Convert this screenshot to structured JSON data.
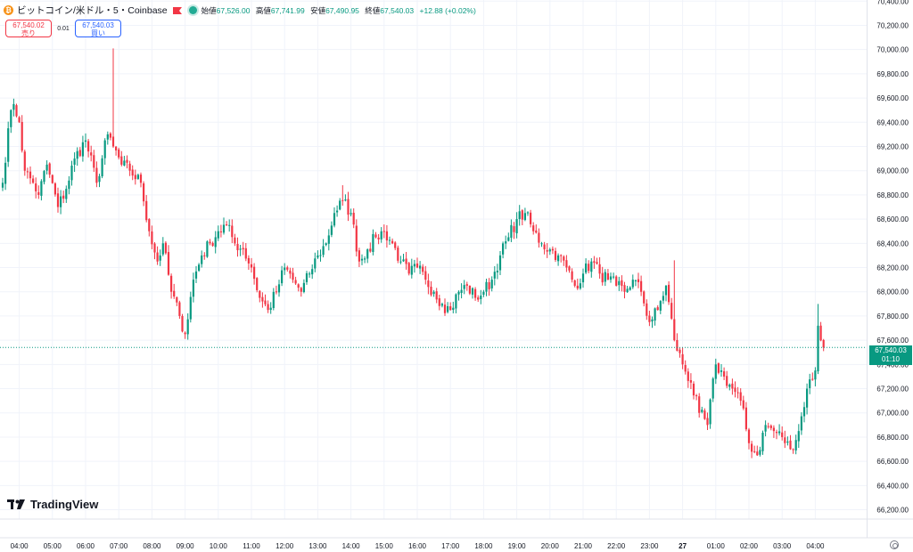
{
  "header": {
    "symbol": "ビットコイン/米ドル・5・Coinbase",
    "coin_glyph": "₿",
    "open_label": "始値",
    "open": "67,526.00",
    "high_label": "高値",
    "high": "67,741.99",
    "low_label": "安値",
    "low": "67,490.95",
    "close_label": "終値",
    "close": "67,540.03",
    "change": "+12.88 (+0.02%)"
  },
  "trade": {
    "sell_price": "67,540.02",
    "sell_label": "売り",
    "spread": "0.01",
    "buy_price": "67,540.03",
    "buy_label": "買い"
  },
  "current_price": {
    "value": "67,540.03",
    "countdown": "01:10"
  },
  "logo": {
    "text": "TradingView"
  },
  "colors": {
    "up": "#089981",
    "down": "#f23645",
    "grid": "#f0f3fa",
    "axis_text": "#131722"
  },
  "chart_data": {
    "type": "candlestick",
    "interval": "5",
    "ylim": [
      66160,
      70380
    ],
    "y_ticks": [
      66200,
      66400,
      66600,
      66800,
      67000,
      67200,
      67400,
      67600,
      67800,
      68000,
      68200,
      68400,
      68600,
      68800,
      69000,
      69200,
      69400,
      69600,
      69800,
      70000,
      70200,
      70400
    ],
    "y_tick_labels": [
      "66,200.00",
      "66,400.00",
      "66,600.00",
      "66,800.00",
      "67,000.00",
      "67,200.00",
      "67,400.00",
      "67,600.00",
      "67,800.00",
      "68,000.00",
      "68,200.00",
      "68,400.00",
      "68,600.00",
      "68,800.00",
      "69,000.00",
      "69,200.00",
      "69,400.00",
      "69,600.00",
      "69,800.00",
      "70,000.00",
      "70,200.00",
      "70,400.00"
    ],
    "x_tick_labels": [
      "04:00",
      "05:00",
      "06:00",
      "07:00",
      "08:00",
      "09:00",
      "10:00",
      "11:00",
      "12:00",
      "13:00",
      "14:00",
      "15:00",
      "16:00",
      "17:00",
      "18:00",
      "19:00",
      "20:00",
      "21:00",
      "22:00",
      "23:00",
      "27",
      "01:00",
      "02:00",
      "03:00",
      "04:00"
    ],
    "x_tick_bar_index": [
      6,
      18,
      30,
      42,
      54,
      66,
      78,
      90,
      102,
      114,
      126,
      138,
      150,
      162,
      174,
      186,
      198,
      210,
      222,
      234,
      246,
      258,
      270,
      282,
      294
    ],
    "bar_count": 298,
    "current_price": 67540.03,
    "close_anchors": [
      [
        0,
        68900
      ],
      [
        2,
        69350
      ],
      [
        4,
        69550
      ],
      [
        6,
        69400
      ],
      [
        8,
        69000
      ],
      [
        11,
        68900
      ],
      [
        13,
        68800
      ],
      [
        16,
        69050
      ],
      [
        20,
        68700
      ],
      [
        23,
        68850
      ],
      [
        26,
        69100
      ],
      [
        30,
        69250
      ],
      [
        34,
        68900
      ],
      [
        38,
        69300
      ],
      [
        40,
        69200
      ],
      [
        43,
        69050
      ],
      [
        46,
        69000
      ],
      [
        50,
        68900
      ],
      [
        53,
        68500
      ],
      [
        56,
        68250
      ],
      [
        58,
        68400
      ],
      [
        61,
        68000
      ],
      [
        64,
        67800
      ],
      [
        66,
        67650
      ],
      [
        69,
        68100
      ],
      [
        72,
        68300
      ],
      [
        75,
        68400
      ],
      [
        78,
        68500
      ],
      [
        81,
        68550
      ],
      [
        84,
        68400
      ],
      [
        87,
        68350
      ],
      [
        90,
        68200
      ],
      [
        93,
        67950
      ],
      [
        96,
        67850
      ],
      [
        99,
        68000
      ],
      [
        102,
        68200
      ],
      [
        105,
        68100
      ],
      [
        108,
        68000
      ],
      [
        111,
        68150
      ],
      [
        114,
        68300
      ],
      [
        117,
        68400
      ],
      [
        120,
        68650
      ],
      [
        123,
        68750
      ],
      [
        126,
        68650
      ],
      [
        129,
        68250
      ],
      [
        132,
        68350
      ],
      [
        135,
        68450
      ],
      [
        138,
        68500
      ],
      [
        141,
        68400
      ],
      [
        144,
        68250
      ],
      [
        147,
        68150
      ],
      [
        150,
        68200
      ],
      [
        153,
        68100
      ],
      [
        156,
        68000
      ],
      [
        159,
        67900
      ],
      [
        162,
        67850
      ],
      [
        165,
        68000
      ],
      [
        168,
        68050
      ],
      [
        171,
        67950
      ],
      [
        174,
        68000
      ],
      [
        177,
        68100
      ],
      [
        180,
        68300
      ],
      [
        183,
        68450
      ],
      [
        186,
        68600
      ],
      [
        189,
        68650
      ],
      [
        192,
        68500
      ],
      [
        195,
        68400
      ],
      [
        198,
        68350
      ],
      [
        201,
        68300
      ],
      [
        204,
        68200
      ],
      [
        207,
        68050
      ],
      [
        210,
        68150
      ],
      [
        213,
        68250
      ],
      [
        216,
        68150
      ],
      [
        219,
        68100
      ],
      [
        222,
        68050
      ],
      [
        225,
        68000
      ],
      [
        228,
        68100
      ],
      [
        231,
        68000
      ],
      [
        234,
        67750
      ],
      [
        237,
        67850
      ],
      [
        240,
        68050
      ],
      [
        243,
        67600
      ],
      [
        246,
        67400
      ],
      [
        249,
        67250
      ],
      [
        252,
        67000
      ],
      [
        255,
        66900
      ],
      [
        258,
        67400
      ],
      [
        261,
        67300
      ],
      [
        264,
        67200
      ],
      [
        267,
        67100
      ],
      [
        270,
        66750
      ],
      [
        273,
        66650
      ],
      [
        276,
        66900
      ],
      [
        279,
        66850
      ],
      [
        282,
        66800
      ],
      [
        285,
        66700
      ],
      [
        288,
        66850
      ],
      [
        291,
        67200
      ],
      [
        294,
        67350
      ],
      [
        295,
        67720
      ],
      [
        297,
        67540
      ]
    ],
    "wick_spikes": [
      [
        40,
        70010
      ],
      [
        123,
        68880
      ],
      [
        243,
        68260
      ],
      [
        295,
        67900
      ]
    ],
    "seed": 7
  }
}
